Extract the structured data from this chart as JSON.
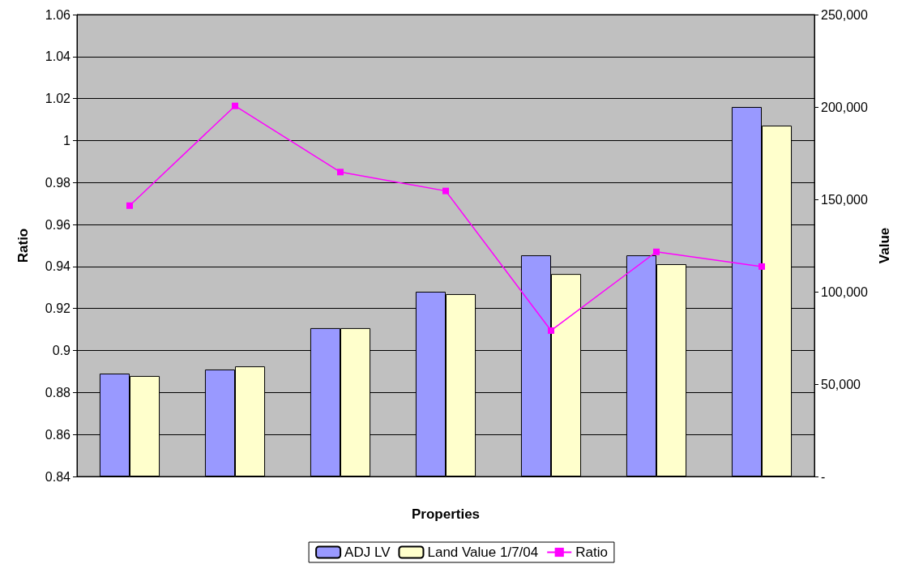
{
  "chart_data": {
    "type": "bar",
    "xlabel": "Properties",
    "ylabel": "Ratio",
    "y2label": "Value",
    "categories": [
      null,
      null,
      null,
      null,
      null,
      null,
      null
    ],
    "series": [
      {
        "name": "ADJ LV",
        "axis": "y2",
        "color": "#9999ff",
        "values": [
          55700,
          57900,
          80300,
          100000,
          119700,
          119700,
          200000
        ]
      },
      {
        "name": "Land Value 1/7/04",
        "axis": "y2",
        "color": "#ffffcc",
        "values": [
          54400,
          59600,
          80300,
          98700,
          109600,
          114900,
          189900
        ]
      },
      {
        "name": "Ratio",
        "type": "line",
        "axis": "y",
        "color": "#ff00ff",
        "marker": "square",
        "values": [
          0.969,
          1.0165,
          0.985,
          0.976,
          0.9095,
          0.947,
          0.94
        ]
      }
    ],
    "ylim": [
      0.84,
      1.06
    ],
    "yticks": [
      0.84,
      0.86,
      0.88,
      0.9,
      0.92,
      0.94,
      0.96,
      0.98,
      1,
      1.02,
      1.04,
      1.06
    ],
    "y2lim": [
      0,
      250000
    ],
    "y2ticks": [
      {
        "value": 0,
        "label": "-"
      },
      {
        "value": 50000,
        "label": "50,000"
      },
      {
        "value": 100000,
        "label": "100,000"
      },
      {
        "value": 150000,
        "label": "150,000"
      },
      {
        "value": 200000,
        "label": "200,000"
      },
      {
        "value": 250000,
        "label": "250,000"
      }
    ],
    "grid": "y",
    "legend": "bottom"
  }
}
